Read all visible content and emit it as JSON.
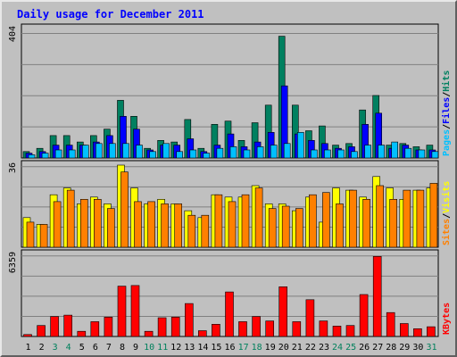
{
  "chart_data": {
    "type": "bar",
    "title": "Daily usage for December 2011",
    "categories": [
      "1",
      "2",
      "3",
      "4",
      "5",
      "6",
      "7",
      "8",
      "9",
      "10",
      "11",
      "12",
      "13",
      "14",
      "15",
      "16",
      "17",
      "18",
      "19",
      "20",
      "21",
      "22",
      "23",
      "24",
      "25",
      "26",
      "27",
      "28",
      "29",
      "30",
      "31"
    ],
    "weekend_days": [
      "3",
      "4",
      "10",
      "11",
      "17",
      "18",
      "24",
      "25",
      "31"
    ],
    "panels": [
      {
        "id": "hits-files-pages",
        "ymax": 404,
        "ymax_label": "404",
        "legend": [
          {
            "label": "Pages",
            "color": "#00c0ff"
          },
          {
            "label": "/",
            "color": "#000000"
          },
          {
            "label": "Files",
            "color": "#0000ff"
          },
          {
            "label": "/",
            "color": "#000000"
          },
          {
            "label": "Hits",
            "color": "#008060"
          }
        ],
        "series": [
          {
            "name": "Hits",
            "color": "#008060",
            "values": [
              20,
              30,
              70,
              70,
              50,
              70,
              90,
              180,
              130,
              30,
              55,
              50,
              120,
              30,
              105,
              115,
              55,
              110,
              165,
              380,
              165,
              85,
              100,
              40,
              45,
              150,
              195,
              40,
              45,
              35,
              40
            ]
          },
          {
            "name": "Files",
            "color": "#0000ff",
            "values": [
              15,
              20,
              40,
              40,
              40,
              50,
              70,
              130,
              90,
              25,
              40,
              40,
              60,
              20,
              40,
              75,
              35,
              50,
              80,
              225,
              75,
              55,
              45,
              30,
              35,
              105,
              140,
              30,
              40,
              25,
              25
            ]
          },
          {
            "name": "Pages",
            "color": "#00c0ff",
            "values": [
              10,
              15,
              25,
              25,
              40,
              45,
              45,
              45,
              40,
              20,
              45,
              20,
              25,
              15,
              30,
              35,
              25,
              35,
              40,
              45,
              80,
              25,
              25,
              25,
              20,
              40,
              40,
              50,
              30,
              25,
              20
            ]
          }
        ]
      },
      {
        "id": "visits-sites",
        "ymax": 36,
        "ymax_label": "36",
        "legend": [
          {
            "label": "Sites",
            "color": "#ff8000"
          },
          {
            "label": "/",
            "color": "#000000"
          },
          {
            "label": "Visits",
            "color": "#ffff00"
          }
        ],
        "series": [
          {
            "name": "Visits",
            "color": "#ffff00",
            "values": [
              13,
              10,
              23,
              26,
              19,
              22,
              19,
              36,
              26,
              19,
              21,
              19,
              16,
              13,
              23,
              22,
              22,
              27,
              19,
              19,
              16,
              22,
              11,
              26,
              25,
              22,
              31,
              26,
              21,
              25,
              26
            ]
          },
          {
            "name": "Sites",
            "color": "#ff8000",
            "values": [
              11,
              10,
              20,
              25,
              21,
              21,
              17,
              33,
              20,
              20,
              19,
              19,
              14,
              14,
              23,
              20,
              23,
              26,
              17,
              18,
              17,
              23,
              24,
              19,
              25,
              21,
              27,
              21,
              25,
              25,
              28
            ]
          }
        ]
      },
      {
        "id": "kbytes",
        "ymax": 6359,
        "ymax_label": "6359",
        "legend": [
          {
            "label": "KBytes",
            "color": "#ff0000"
          }
        ],
        "series": [
          {
            "name": "KBytes",
            "color": "#ff0000",
            "values": [
              150,
              850,
              1550,
              1650,
              400,
              1150,
              1500,
              3900,
              3950,
              400,
              1450,
              1500,
              2550,
              450,
              950,
              3450,
              1150,
              1550,
              1200,
              3850,
              1150,
              2850,
              1200,
              800,
              850,
              3250,
              6200,
              1850,
              1000,
              600,
              750
            ]
          }
        ]
      }
    ],
    "grid": true
  }
}
